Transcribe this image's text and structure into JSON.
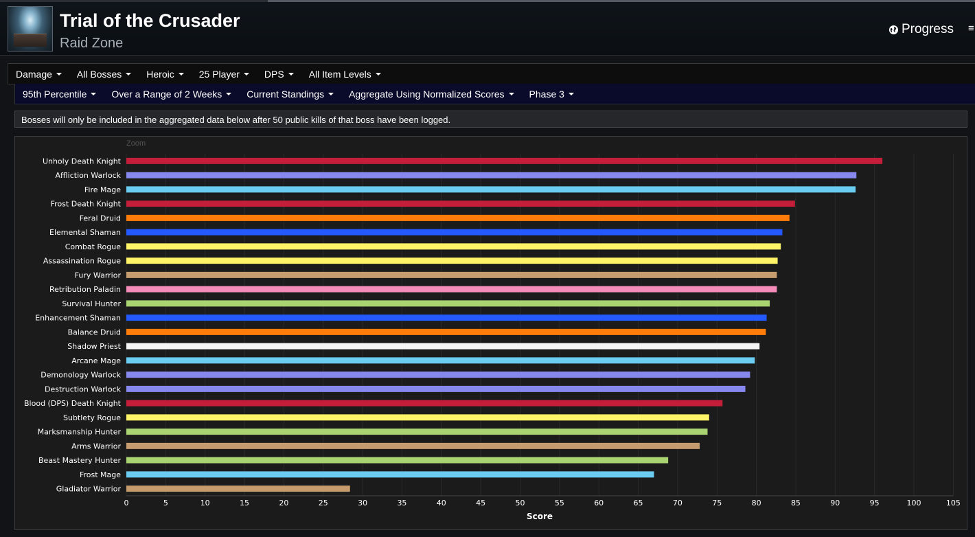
{
  "header": {
    "title": "Trial of the Crusader",
    "subtitle": "Raid Zone",
    "progress_label": "Progress"
  },
  "filters_row1": [
    {
      "label": "Damage"
    },
    {
      "label": "All Bosses"
    },
    {
      "label": "Heroic"
    },
    {
      "label": "25 Player"
    },
    {
      "label": "DPS"
    },
    {
      "label": "All Item Levels"
    }
  ],
  "filters_row2": [
    {
      "label": "95th Percentile"
    },
    {
      "label": "Over a Range of 2 Weeks"
    },
    {
      "label": "Current Standings"
    },
    {
      "label": "Aggregate Using Normalized Scores"
    },
    {
      "label": "Phase 3"
    }
  ],
  "notice": "Bosses will only be included in the aggregated data below after 50 public kills of that boss have been logged.",
  "zoom_label": "Zoom",
  "chart_data": {
    "type": "bar",
    "orientation": "horizontal",
    "xlabel": "Score",
    "xlim": [
      0,
      105
    ],
    "xticks": [
      0,
      5,
      10,
      15,
      20,
      25,
      30,
      35,
      40,
      45,
      50,
      55,
      60,
      65,
      70,
      75,
      80,
      85,
      90,
      95,
      100,
      105
    ],
    "grid": true,
    "categories": [
      "Unholy Death Knight",
      "Affliction Warlock",
      "Fire Mage",
      "Frost Death Knight",
      "Feral Druid",
      "Elemental Shaman",
      "Combat Rogue",
      "Assassination Rogue",
      "Fury Warrior",
      "Retribution Paladin",
      "Survival Hunter",
      "Enhancement Shaman",
      "Balance Druid",
      "Shadow Priest",
      "Arcane Mage",
      "Demonology Warlock",
      "Destruction Warlock",
      "Blood (DPS) Death Knight",
      "Subtlety Rogue",
      "Marksmanship Hunter",
      "Arms Warrior",
      "Beast Mastery Hunter",
      "Frost Mage",
      "Gladiator Warrior"
    ],
    "values": [
      96.0,
      92.7,
      92.6,
      84.9,
      84.2,
      83.3,
      83.1,
      82.7,
      82.6,
      82.6,
      81.7,
      81.3,
      81.2,
      80.4,
      79.8,
      79.2,
      78.6,
      75.7,
      74.0,
      73.8,
      72.8,
      68.8,
      67.0,
      28.4
    ],
    "colors": [
      "#C41E3A",
      "#8788EE",
      "#69CCF0",
      "#C41E3A",
      "#FF7C0A",
      "#2459FF",
      "#FFF468",
      "#FFF468",
      "#C69B6D",
      "#F48CBA",
      "#AAD372",
      "#2459FF",
      "#FF7C0A",
      "#F5F5F5",
      "#69CCF0",
      "#8788EE",
      "#8788EE",
      "#C41E3A",
      "#FFF468",
      "#AAD372",
      "#C69B6D",
      "#AAD372",
      "#69CCF0",
      "#C69B6D"
    ]
  }
}
